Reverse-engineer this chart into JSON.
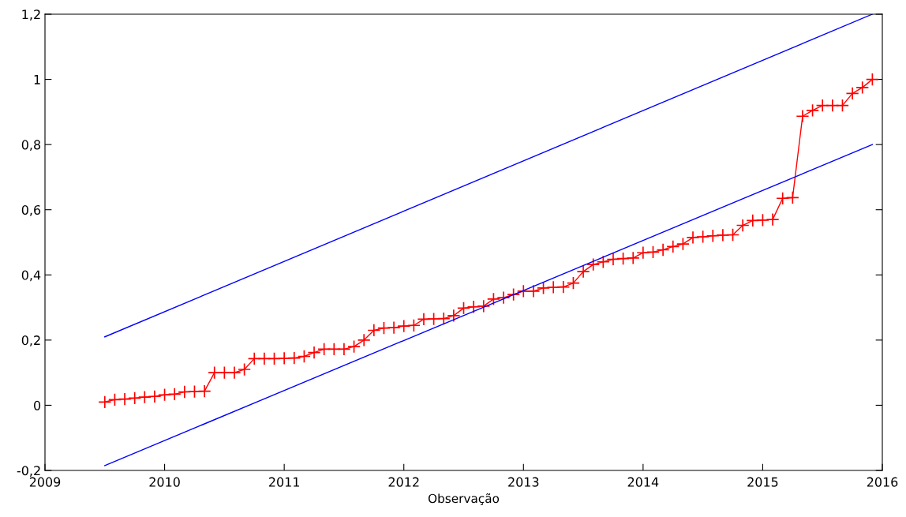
{
  "chart_data": {
    "type": "line",
    "xlabel": "Observação",
    "xlim": [
      "2009",
      "2016"
    ],
    "xticks": [
      "2009",
      "2010",
      "2011",
      "2012",
      "2013",
      "2014",
      "2015",
      "2016"
    ],
    "ylim": [
      -0.2,
      1.2
    ],
    "yticks": [
      {
        "value": -0.2,
        "label": "-0,2"
      },
      {
        "value": 0,
        "label": "0"
      },
      {
        "value": 0.2,
        "label": "0,2"
      },
      {
        "value": 0.4,
        "label": "0,4"
      },
      {
        "value": 0.6,
        "label": "0,6"
      },
      {
        "value": 0.8,
        "label": "0,8"
      },
      {
        "value": 1,
        "label": "1"
      },
      {
        "value": 1.2,
        "label": "1,2"
      }
    ],
    "series": [
      {
        "color": "#ff0000",
        "marker": "cross",
        "x": [
          "2009-07",
          "2009-08",
          "2009-09",
          "2009-10",
          "2009-11",
          "2009-12",
          "2010-01",
          "2010-02",
          "2010-03",
          "2010-04",
          "2010-05",
          "2010-06",
          "2010-07",
          "2010-08",
          "2010-09",
          "2010-10",
          "2010-11",
          "2010-12",
          "2011-01",
          "2011-02",
          "2011-03",
          "2011-04",
          "2011-05",
          "2011-06",
          "2011-07",
          "2011-08",
          "2011-09",
          "2011-10",
          "2011-11",
          "2011-12",
          "2012-01",
          "2012-02",
          "2012-03",
          "2012-04",
          "2012-05",
          "2012-06",
          "2012-07",
          "2012-08",
          "2012-09",
          "2012-10",
          "2012-11",
          "2012-12",
          "2013-01",
          "2013-02",
          "2013-03",
          "2013-04",
          "2013-05",
          "2013-06",
          "2013-07",
          "2013-08",
          "2013-09",
          "2013-10",
          "2013-11",
          "2013-12",
          "2014-01",
          "2014-02",
          "2014-03",
          "2014-04",
          "2014-05",
          "2014-06",
          "2014-07",
          "2014-08",
          "2014-09",
          "2014-10",
          "2014-11",
          "2014-12",
          "2015-01",
          "2015-02",
          "2015-03",
          "2015-04",
          "2015-05",
          "2015-06",
          "2015-07",
          "2015-08",
          "2015-09",
          "2015-10",
          "2015-11",
          "2015-12"
        ],
        "values": [
          0.01,
          0.017,
          0.019,
          0.022,
          0.025,
          0.027,
          0.032,
          0.034,
          0.041,
          0.042,
          0.043,
          0.1,
          0.1,
          0.1,
          0.11,
          0.143,
          0.143,
          0.143,
          0.144,
          0.145,
          0.15,
          0.162,
          0.172,
          0.172,
          0.172,
          0.18,
          0.2,
          0.23,
          0.237,
          0.238,
          0.243,
          0.245,
          0.264,
          0.265,
          0.266,
          0.275,
          0.298,
          0.302,
          0.304,
          0.326,
          0.33,
          0.34,
          0.35,
          0.35,
          0.36,
          0.362,
          0.363,
          0.375,
          0.41,
          0.432,
          0.44,
          0.448,
          0.45,
          0.452,
          0.468,
          0.47,
          0.477,
          0.487,
          0.495,
          0.515,
          0.517,
          0.52,
          0.522,
          0.523,
          0.552,
          0.567,
          0.568,
          0.57,
          0.635,
          0.637,
          0.887,
          0.905,
          0.92,
          0.92,
          0.92,
          0.957,
          0.975,
          1.0
        ]
      },
      {
        "color": "#0000ff",
        "marker": "none",
        "x": [
          "2009-07",
          "2015-12"
        ],
        "values": [
          0.21,
          1.2
        ]
      },
      {
        "color": "#0000ff",
        "marker": "none",
        "x": [
          "2009-07",
          "2015-12"
        ],
        "values": [
          -0.185,
          0.8
        ]
      }
    ]
  }
}
